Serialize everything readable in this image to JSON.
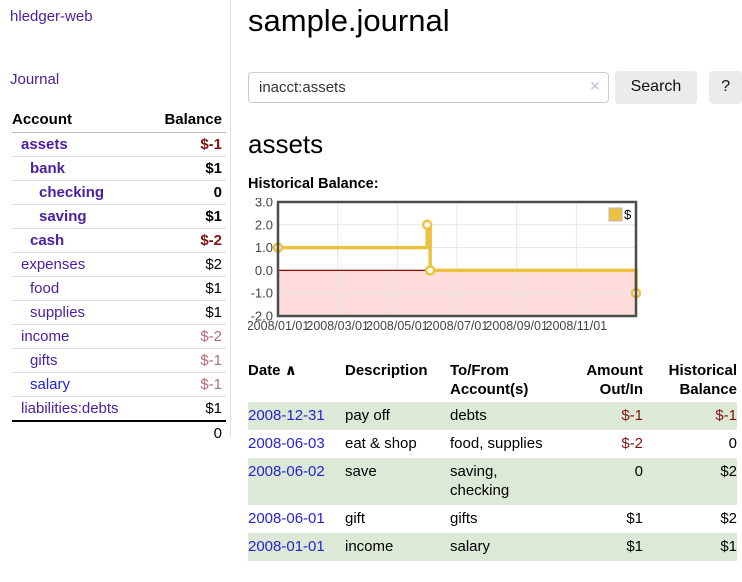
{
  "colors": {
    "link_purple": "#4a1fa2",
    "link_blue": "#2424d0",
    "negative": "#7f1414",
    "negative_muted": "#b46e6e",
    "row_highlight": "#dce9d6",
    "chart_line": "#edc240",
    "chart_negative_bg": "#ffdddd",
    "chart_zero_line": "#8b0000",
    "chart_grid": "#e6e6e6",
    "chart_border": "#4c4c4c"
  },
  "sidebar": {
    "brand": "hledger-web",
    "journal_link": "Journal",
    "accounts": {
      "header_account": "Account",
      "header_balance": "Balance",
      "rows": [
        {
          "name": "assets",
          "depth": 1,
          "balance": "$-1",
          "bold": true,
          "negative": "dark",
          "link": "purple"
        },
        {
          "name": "bank",
          "depth": 2,
          "balance": "$1",
          "bold": true,
          "negative": null,
          "link": "purple"
        },
        {
          "name": "checking",
          "depth": 3,
          "balance": "0",
          "bold": true,
          "negative": null,
          "link": "purple"
        },
        {
          "name": "saving",
          "depth": 3,
          "balance": "$1",
          "bold": true,
          "negative": null,
          "link": "purple"
        },
        {
          "name": "cash",
          "depth": 2,
          "balance": "$-2",
          "bold": true,
          "negative": "dark",
          "link": "purple"
        },
        {
          "name": "expenses",
          "depth": 1,
          "balance": "$2",
          "bold": false,
          "negative": null,
          "link": "purple"
        },
        {
          "name": "food",
          "depth": 2,
          "balance": "$1",
          "bold": false,
          "negative": null,
          "link": "purple"
        },
        {
          "name": "supplies",
          "depth": 2,
          "balance": "$1",
          "bold": false,
          "negative": null,
          "link": "purple"
        },
        {
          "name": "income",
          "depth": 1,
          "balance": "$-2",
          "bold": false,
          "negative": "muted",
          "link": "purple"
        },
        {
          "name": "gifts",
          "depth": 2,
          "balance": "$-1",
          "bold": false,
          "negative": "muted",
          "link": "purple"
        },
        {
          "name": "salary",
          "depth": 2,
          "balance": "$-1",
          "bold": false,
          "negative": "muted",
          "link": "blue"
        },
        {
          "name": "liabilities:debts",
          "depth": 1,
          "balance": "$1",
          "bold": false,
          "negative": null,
          "link": "purple"
        }
      ],
      "total": "0"
    }
  },
  "main": {
    "title": "sample.journal",
    "search": {
      "value": "inacct:assets",
      "clear_icon": "×",
      "search_button": "Search",
      "help_button": "?"
    },
    "account_heading": "assets"
  },
  "chart_data": {
    "type": "line",
    "step": true,
    "title": "Historical Balance:",
    "xlim": [
      0,
      12
    ],
    "ylim": [
      -2,
      3
    ],
    "grid": true,
    "negative_region": true,
    "legend": {
      "label": "$",
      "position": "top-right"
    },
    "y_ticks": [
      "3.0",
      "2.0",
      "1.0",
      "0.0",
      "-1.0",
      "-2.0"
    ],
    "x_ticks": [
      {
        "x": 0,
        "label": "2008/01/01"
      },
      {
        "x": 2,
        "label": "2008/03/01"
      },
      {
        "x": 4,
        "label": "2008/05/01"
      },
      {
        "x": 6,
        "label": "2008/07/01"
      },
      {
        "x": 8,
        "label": "2008/09/01"
      },
      {
        "x": 10,
        "label": "2008/11/01"
      }
    ],
    "series": [
      {
        "name": "$",
        "points": [
          [
            0,
            1
          ],
          [
            5,
            2
          ],
          [
            5.1,
            0
          ],
          [
            12,
            -1
          ]
        ],
        "point_dates": [
          "2008/01/01",
          "2008/06/01",
          "2008/06/03",
          "2008/12/31"
        ]
      }
    ]
  },
  "transactions": {
    "headers": [
      "Date",
      "Description",
      "To/From Account(s)",
      "Amount Out/In",
      "Historical Balance"
    ],
    "sort_icon": "∧",
    "rows": [
      {
        "date": "2008-12-31",
        "description": "pay off",
        "accounts": "debts",
        "amount": "$-1",
        "amount_negative": true,
        "balance": "$-1",
        "balance_negative": true,
        "highlight": true
      },
      {
        "date": "2008-06-03",
        "description": "eat & shop",
        "accounts": "food, supplies",
        "amount": "$-2",
        "amount_negative": true,
        "balance": "0",
        "balance_negative": false,
        "highlight": false
      },
      {
        "date": "2008-06-02",
        "description": "save",
        "accounts": "saving, checking",
        "amount": "0",
        "amount_negative": false,
        "balance": "$2",
        "balance_negative": false,
        "highlight": true
      },
      {
        "date": "2008-06-01",
        "description": "gift",
        "accounts": "gifts",
        "amount": "$1",
        "amount_negative": false,
        "balance": "$2",
        "balance_negative": false,
        "highlight": false
      },
      {
        "date": "2008-01-01",
        "description": "income",
        "accounts": "salary",
        "amount": "$1",
        "amount_negative": false,
        "balance": "$1",
        "balance_negative": false,
        "highlight": true
      }
    ]
  }
}
